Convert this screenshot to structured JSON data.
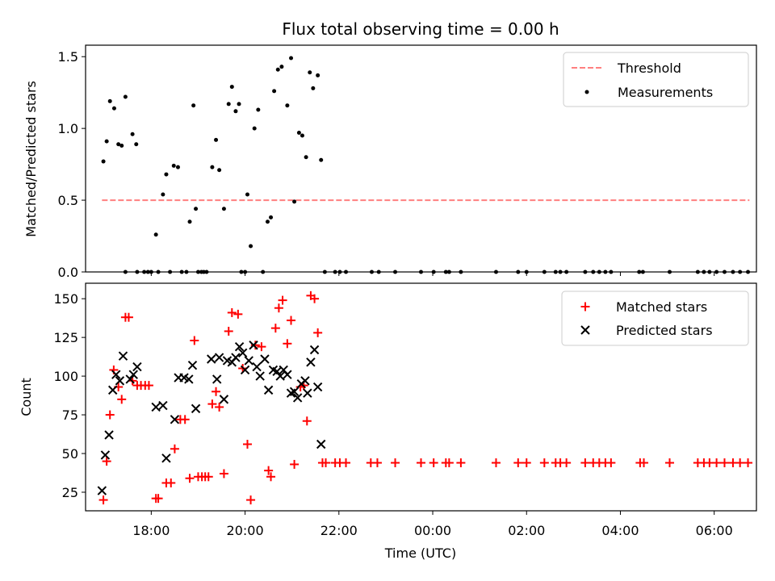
{
  "chart_data": [
    {
      "type": "scatter",
      "title": "Flux total observing time = 0.00 h",
      "xlabel": "",
      "ylabel": "Matched/Predicted stars",
      "x_unit": "hours since 00:00 on observing day",
      "xlim": [
        16.6,
        30.9
      ],
      "ylim": [
        0,
        1.58
      ],
      "yticks": [
        0,
        0.5,
        1.0,
        1.5
      ],
      "yticklabels": [
        "0.0",
        "0.5",
        "1.0",
        "1.5"
      ],
      "legend": {
        "position": "top-right",
        "entries": [
          "Threshold",
          "Measurements"
        ]
      },
      "threshold": {
        "name": "Threshold",
        "y": 0.5,
        "x_start": 16.95,
        "x_end": 30.75,
        "color": "#ff7f7f"
      },
      "series": [
        {
          "name": "Measurements",
          "color": "#000000",
          "points": [
            [
              16.98,
              0.77
            ],
            [
              17.05,
              0.91
            ],
            [
              17.12,
              1.19
            ],
            [
              17.21,
              1.14
            ],
            [
              17.3,
              0.89
            ],
            [
              17.37,
              0.88
            ],
            [
              17.45,
              1.22
            ],
            [
              17.6,
              0.96
            ],
            [
              17.68,
              0.89
            ],
            [
              17.45,
              0.0
            ],
            [
              17.7,
              0.0
            ],
            [
              17.85,
              0.0
            ],
            [
              17.93,
              0.0
            ],
            [
              18.0,
              0.0
            ],
            [
              18.1,
              0.26
            ],
            [
              18.15,
              0.0
            ],
            [
              18.25,
              0.54
            ],
            [
              18.32,
              0.68
            ],
            [
              18.4,
              0.0
            ],
            [
              18.48,
              0.74
            ],
            [
              18.57,
              0.73
            ],
            [
              18.65,
              0.0
            ],
            [
              18.75,
              0.0
            ],
            [
              18.82,
              0.35
            ],
            [
              18.9,
              1.16
            ],
            [
              18.95,
              0.44
            ],
            [
              19.0,
              0.0
            ],
            [
              19.07,
              0.0
            ],
            [
              19.12,
              0.0
            ],
            [
              19.18,
              0.0
            ],
            [
              19.3,
              0.73
            ],
            [
              19.38,
              0.92
            ],
            [
              19.45,
              0.71
            ],
            [
              19.55,
              0.44
            ],
            [
              19.65,
              1.17
            ],
            [
              19.72,
              1.29
            ],
            [
              19.8,
              1.12
            ],
            [
              19.87,
              1.17
            ],
            [
              19.92,
              0.0
            ],
            [
              20.0,
              0.0
            ],
            [
              20.05,
              0.54
            ],
            [
              20.12,
              0.18
            ],
            [
              20.2,
              1.0
            ],
            [
              20.28,
              1.13
            ],
            [
              20.38,
              0.0
            ],
            [
              20.48,
              0.35
            ],
            [
              20.55,
              0.38
            ],
            [
              20.62,
              1.26
            ],
            [
              20.7,
              1.41
            ],
            [
              20.78,
              1.43
            ],
            [
              20.9,
              1.16
            ],
            [
              20.98,
              1.49
            ],
            [
              21.05,
              0.49
            ],
            [
              21.15,
              0.97
            ],
            [
              21.22,
              0.95
            ],
            [
              21.3,
              0.8
            ],
            [
              21.38,
              1.39
            ],
            [
              21.45,
              1.28
            ],
            [
              21.55,
              1.37
            ],
            [
              21.62,
              0.78
            ],
            [
              21.7,
              0.0
            ],
            [
              21.92,
              0.0
            ],
            [
              22.02,
              0.0
            ],
            [
              22.15,
              0.0
            ],
            [
              22.7,
              0.0
            ],
            [
              22.85,
              0.0
            ],
            [
              23.2,
              0.0
            ],
            [
              23.75,
              0.0
            ],
            [
              24.02,
              0.0
            ],
            [
              24.28,
              0.0
            ],
            [
              24.35,
              0.0
            ],
            [
              24.6,
              0.0
            ],
            [
              25.35,
              0.0
            ],
            [
              25.82,
              0.0
            ],
            [
              26.0,
              0.0
            ],
            [
              26.38,
              0.0
            ],
            [
              26.62,
              0.0
            ],
            [
              26.72,
              0.0
            ],
            [
              26.85,
              0.0
            ],
            [
              27.25,
              0.0
            ],
            [
              27.42,
              0.0
            ],
            [
              27.55,
              0.0
            ],
            [
              27.68,
              0.0
            ],
            [
              27.8,
              0.0
            ],
            [
              28.4,
              0.0
            ],
            [
              28.48,
              0.0
            ],
            [
              29.05,
              0.0
            ],
            [
              29.65,
              0.0
            ],
            [
              29.78,
              0.0
            ],
            [
              29.9,
              0.0
            ],
            [
              30.05,
              0.0
            ],
            [
              30.22,
              0.0
            ],
            [
              30.4,
              0.0
            ],
            [
              30.55,
              0.0
            ],
            [
              30.72,
              0.0
            ]
          ]
        }
      ]
    },
    {
      "type": "scatter",
      "title": "",
      "xlabel": "Time (UTC)",
      "ylabel": "Count",
      "x_unit": "hours since 00:00 on observing day",
      "xlim": [
        16.6,
        30.9
      ],
      "ylim": [
        13,
        160
      ],
      "yticks": [
        25,
        50,
        75,
        100,
        125,
        150
      ],
      "yticklabels": [
        "25",
        "50",
        "75",
        "100",
        "125",
        "150"
      ],
      "xticks": [
        18,
        20,
        22,
        24,
        26,
        28,
        30
      ],
      "xticklabels": [
        "18:00",
        "20:00",
        "22:00",
        "00:00",
        "02:00",
        "04:00",
        "06:00"
      ],
      "legend": {
        "position": "top-right",
        "entries": [
          "Matched stars",
          "Predicted stars"
        ]
      },
      "series": [
        {
          "name": "Matched stars",
          "marker": "plus",
          "color": "#ff0000",
          "points": [
            [
              16.98,
              20
            ],
            [
              17.05,
              45
            ],
            [
              17.12,
              75
            ],
            [
              17.2,
              104
            ],
            [
              17.3,
              93
            ],
            [
              17.37,
              85
            ],
            [
              17.45,
              138
            ],
            [
              17.52,
              138
            ],
            [
              17.6,
              97
            ],
            [
              17.7,
              94
            ],
            [
              17.78,
              94
            ],
            [
              17.87,
              94
            ],
            [
              17.95,
              94
            ],
            [
              18.1,
              21
            ],
            [
              18.15,
              21
            ],
            [
              18.32,
              31
            ],
            [
              18.42,
              31
            ],
            [
              18.5,
              53
            ],
            [
              18.62,
              72
            ],
            [
              18.72,
              72
            ],
            [
              18.82,
              34
            ],
            [
              18.92,
              123
            ],
            [
              19.0,
              35
            ],
            [
              19.08,
              35
            ],
            [
              19.15,
              35
            ],
            [
              19.22,
              35
            ],
            [
              19.3,
              82
            ],
            [
              19.38,
              90
            ],
            [
              19.45,
              80
            ],
            [
              19.55,
              37
            ],
            [
              19.65,
              129
            ],
            [
              19.72,
              141
            ],
            [
              19.85,
              140
            ],
            [
              19.95,
              105
            ],
            [
              20.05,
              56
            ],
            [
              20.12,
              20
            ],
            [
              20.22,
              120
            ],
            [
              20.35,
              119
            ],
            [
              20.5,
              39
            ],
            [
              20.55,
              35
            ],
            [
              20.65,
              131
            ],
            [
              20.72,
              144
            ],
            [
              20.8,
              149
            ],
            [
              20.9,
              121
            ],
            [
              20.98,
              136
            ],
            [
              21.05,
              43
            ],
            [
              21.18,
              93
            ],
            [
              21.25,
              94
            ],
            [
              21.32,
              71
            ],
            [
              21.4,
              152
            ],
            [
              21.48,
              150
            ],
            [
              21.55,
              128
            ],
            [
              21.65,
              44
            ],
            [
              21.72,
              44
            ],
            [
              21.92,
              44
            ],
            [
              22.02,
              44
            ],
            [
              22.15,
              44
            ],
            [
              22.68,
              44
            ],
            [
              22.82,
              44
            ],
            [
              23.2,
              44
            ],
            [
              23.75,
              44
            ],
            [
              24.02,
              44
            ],
            [
              24.28,
              44
            ],
            [
              24.35,
              44
            ],
            [
              24.6,
              44
            ],
            [
              25.35,
              44
            ],
            [
              25.82,
              44
            ],
            [
              26.0,
              44
            ],
            [
              26.38,
              44
            ],
            [
              26.62,
              44
            ],
            [
              26.72,
              44
            ],
            [
              26.85,
              44
            ],
            [
              27.25,
              44
            ],
            [
              27.42,
              44
            ],
            [
              27.55,
              44
            ],
            [
              27.68,
              44
            ],
            [
              27.8,
              44
            ],
            [
              28.42,
              44
            ],
            [
              28.5,
              44
            ],
            [
              29.05,
              44
            ],
            [
              29.65,
              44
            ],
            [
              29.78,
              44
            ],
            [
              29.9,
              44
            ],
            [
              30.05,
              44
            ],
            [
              30.22,
              44
            ],
            [
              30.4,
              44
            ],
            [
              30.55,
              44
            ],
            [
              30.72,
              44
            ]
          ]
        },
        {
          "name": "Predicted stars",
          "marker": "x",
          "color": "#000000",
          "points": [
            [
              16.95,
              26
            ],
            [
              17.02,
              49
            ],
            [
              17.1,
              62
            ],
            [
              17.18,
              91
            ],
            [
              17.25,
              101
            ],
            [
              17.33,
              97
            ],
            [
              17.4,
              113
            ],
            [
              17.55,
              98
            ],
            [
              17.62,
              101
            ],
            [
              17.7,
              106
            ],
            [
              18.1,
              80
            ],
            [
              18.25,
              81
            ],
            [
              18.32,
              47
            ],
            [
              18.5,
              72
            ],
            [
              18.58,
              99
            ],
            [
              18.7,
              99
            ],
            [
              18.8,
              98
            ],
            [
              18.88,
              107
            ],
            [
              18.95,
              79
            ],
            [
              19.28,
              111
            ],
            [
              19.4,
              98
            ],
            [
              19.45,
              112
            ],
            [
              19.55,
              85
            ],
            [
              19.62,
              110
            ],
            [
              19.72,
              109
            ],
            [
              19.8,
              112
            ],
            [
              19.88,
              119
            ],
            [
              19.95,
              115
            ],
            [
              20.0,
              104
            ],
            [
              20.08,
              110
            ],
            [
              20.18,
              120
            ],
            [
              20.25,
              106
            ],
            [
              20.32,
              100
            ],
            [
              20.42,
              111
            ],
            [
              20.5,
              91
            ],
            [
              20.6,
              104
            ],
            [
              20.68,
              103
            ],
            [
              20.75,
              100
            ],
            [
              20.82,
              104
            ],
            [
              20.9,
              101
            ],
            [
              20.98,
              89
            ],
            [
              21.05,
              90
            ],
            [
              21.12,
              86
            ],
            [
              21.2,
              95
            ],
            [
              21.28,
              97
            ],
            [
              21.33,
              89
            ],
            [
              21.4,
              109
            ],
            [
              21.48,
              117
            ],
            [
              21.55,
              93
            ],
            [
              21.62,
              56
            ]
          ]
        }
      ]
    }
  ]
}
